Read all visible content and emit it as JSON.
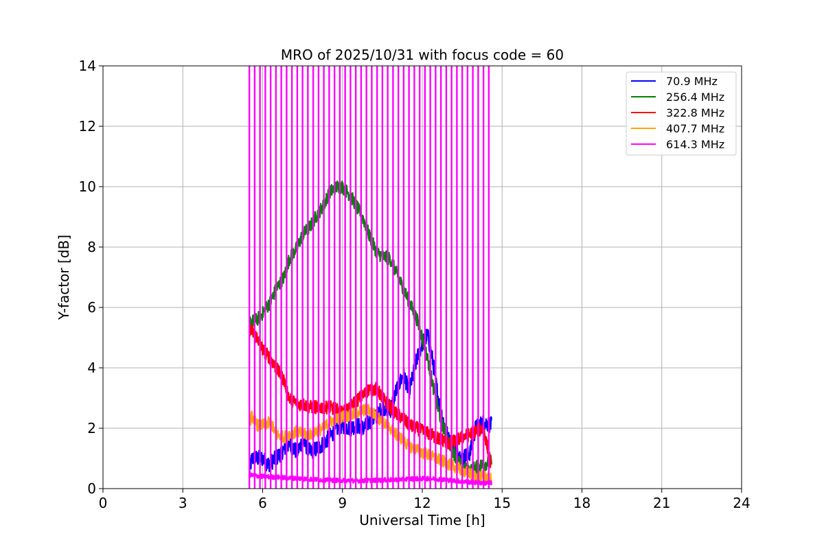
{
  "chart_data": {
    "type": "line",
    "title": "MRO of 2025/10/31 with focus code = 60",
    "xlabel": "Universal Time [h]",
    "ylabel": "Y-factor [dB]",
    "xlim": [
      0,
      24
    ],
    "ylim": [
      0,
      14
    ],
    "xticks": [
      0,
      3,
      6,
      9,
      12,
      15,
      18,
      21,
      24
    ],
    "yticks": [
      0,
      2,
      4,
      6,
      8,
      10,
      12,
      14
    ],
    "grid": true,
    "legend_position": "top-right",
    "calibration_spikes_614MHz": {
      "start_h": 5.5,
      "end_h": 14.6,
      "interval_h": 0.2,
      "peak_db": 14
    },
    "series": [
      {
        "name": " 70.9 MHz",
        "color": "#0000ff",
        "x": [
          5.5,
          5.6,
          5.8,
          6.0,
          6.2,
          6.5,
          6.8,
          7.0,
          7.3,
          7.5,
          7.8,
          8.0,
          8.3,
          8.5,
          8.8,
          9.0,
          9.3,
          9.5,
          9.8,
          10.0,
          10.3,
          10.5,
          10.8,
          11.0,
          11.3,
          11.5,
          11.8,
          12.0,
          12.2,
          12.4,
          12.6,
          12.8,
          13.0,
          13.3,
          13.5,
          13.8,
          14.0,
          14.3,
          14.6
        ],
        "y": [
          0.6,
          1.0,
          1.0,
          1.0,
          0.8,
          1.0,
          1.3,
          1.5,
          1.2,
          1.6,
          1.2,
          1.3,
          1.5,
          1.7,
          2.0,
          2.1,
          2.0,
          2.1,
          2.0,
          2.2,
          2.4,
          2.7,
          2.6,
          3.2,
          3.8,
          3.2,
          4.3,
          4.8,
          5.1,
          4.2,
          3.0,
          2.2,
          1.6,
          1.2,
          1.0,
          1.2,
          2.0,
          2.2,
          2.1
        ]
      },
      {
        "name": "256.4 MHz",
        "color": "#008000",
        "x": [
          5.5,
          5.8,
          6.0,
          6.3,
          6.5,
          6.8,
          7.0,
          7.3,
          7.5,
          7.8,
          8.0,
          8.3,
          8.5,
          8.8,
          9.0,
          9.3,
          9.5,
          9.8,
          10.0,
          10.3,
          10.5,
          10.8,
          11.0,
          11.3,
          11.5,
          11.8,
          12.0,
          12.2,
          12.4,
          12.6,
          12.8,
          13.0,
          13.3,
          13.5,
          13.8,
          14.0,
          14.3,
          14.6
        ],
        "y": [
          5.5,
          5.6,
          5.8,
          6.2,
          6.6,
          7.0,
          7.6,
          8.0,
          8.4,
          8.7,
          9.0,
          9.4,
          9.8,
          10.0,
          10.0,
          9.7,
          9.4,
          8.9,
          8.4,
          7.8,
          7.7,
          7.6,
          7.2,
          6.6,
          6.2,
          5.6,
          5.0,
          4.3,
          3.4,
          2.6,
          2.0,
          1.5,
          1.0,
          0.7,
          0.6,
          0.7,
          0.8,
          0.9
        ]
      },
      {
        "name": "322.8 MHz",
        "color": "#ff0000",
        "x": [
          5.5,
          5.8,
          6.0,
          6.3,
          6.5,
          6.8,
          7.0,
          7.3,
          7.5,
          7.8,
          8.0,
          8.3,
          8.5,
          8.8,
          9.0,
          9.3,
          9.5,
          9.8,
          10.0,
          10.3,
          10.5,
          10.8,
          11.0,
          11.3,
          11.5,
          11.8,
          12.0,
          12.3,
          12.5,
          12.8,
          13.0,
          13.3,
          13.5,
          13.8,
          14.0,
          14.3,
          14.6
        ],
        "y": [
          5.3,
          5.0,
          4.6,
          4.3,
          4.0,
          3.6,
          3.0,
          2.8,
          2.8,
          2.7,
          2.7,
          2.7,
          2.7,
          2.6,
          2.5,
          2.7,
          2.9,
          3.1,
          3.3,
          3.3,
          3.0,
          2.7,
          2.5,
          2.3,
          2.1,
          2.0,
          1.9,
          1.8,
          1.7,
          1.6,
          1.5,
          1.6,
          1.7,
          1.8,
          1.9,
          2.0,
          0.7
        ]
      },
      {
        "name": "407.7 MHz",
        "color": "#ffa500",
        "x": [
          5.5,
          5.6,
          5.8,
          6.0,
          6.3,
          6.5,
          6.8,
          7.0,
          7.3,
          7.5,
          7.8,
          8.0,
          8.3,
          8.5,
          8.8,
          9.0,
          9.3,
          9.5,
          9.8,
          10.0,
          10.3,
          10.5,
          10.8,
          11.0,
          11.3,
          11.5,
          11.8,
          12.0,
          12.3,
          12.5,
          12.8,
          13.0,
          13.3,
          13.5,
          13.8,
          14.0,
          14.3,
          14.6
        ],
        "y": [
          2.2,
          2.4,
          2.1,
          2.1,
          2.2,
          1.8,
          1.7,
          1.8,
          1.9,
          1.8,
          1.8,
          1.9,
          2.0,
          2.2,
          2.3,
          2.4,
          2.4,
          2.5,
          2.6,
          2.6,
          2.4,
          2.2,
          2.0,
          1.8,
          1.6,
          1.4,
          1.3,
          1.2,
          1.1,
          1.0,
          0.9,
          0.8,
          0.7,
          0.6,
          0.5,
          0.4,
          0.4,
          0.3
        ]
      },
      {
        "name": "614.3 MHz",
        "color": "#ff00ff",
        "x": [
          5.5,
          6.0,
          6.5,
          7.0,
          7.5,
          8.0,
          8.5,
          9.0,
          9.5,
          10.0,
          10.5,
          11.0,
          11.5,
          12.0,
          12.5,
          13.0,
          13.5,
          14.0,
          14.6
        ],
        "y": [
          0.45,
          0.4,
          0.38,
          0.35,
          0.33,
          0.3,
          0.28,
          0.27,
          0.26,
          0.27,
          0.28,
          0.3,
          0.32,
          0.33,
          0.32,
          0.28,
          0.24,
          0.2,
          0.18
        ]
      }
    ]
  }
}
